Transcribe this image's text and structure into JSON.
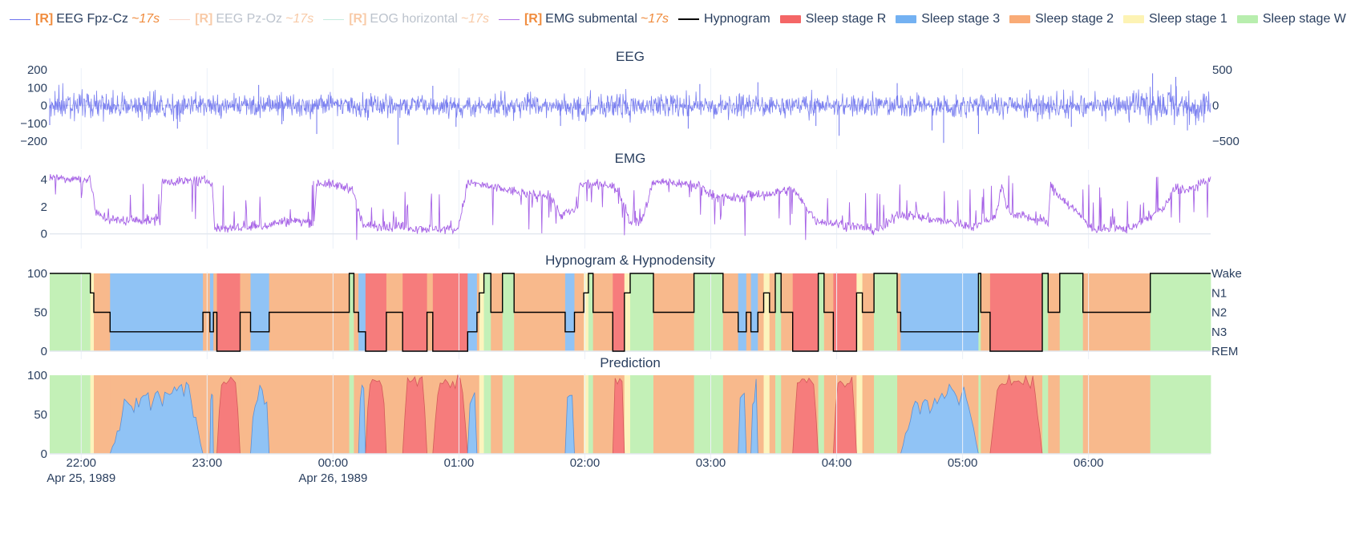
{
  "legend": [
    {
      "kind": "line",
      "prefix": "[R]",
      "label": "EEG Fpz-Cz",
      "suffix": "~17s",
      "color": "#6d72ee",
      "dim": false
    },
    {
      "kind": "line",
      "prefix": "[R]",
      "label": "EEG Pz-Oz",
      "suffix": "~17s",
      "color": "#f5a58a",
      "dim": true
    },
    {
      "kind": "line",
      "prefix": "[R]",
      "label": "EOG horizontal",
      "suffix": "~17s",
      "color": "#7fd6b8",
      "dim": true
    },
    {
      "kind": "line",
      "prefix": "[R]",
      "label": "EMG submental",
      "suffix": "~17s",
      "color": "#b06fe6",
      "dim": false
    },
    {
      "kind": "line",
      "prefix": "",
      "label": "Hypnogram",
      "suffix": "",
      "color": "#000000",
      "dim": false
    },
    {
      "kind": "box",
      "prefix": "",
      "label": "Sleep stage R",
      "suffix": "",
      "color": "#f46666",
      "dim": false
    },
    {
      "kind": "box",
      "prefix": "",
      "label": "Sleep stage 3",
      "suffix": "",
      "color": "#73b1f2",
      "dim": false
    },
    {
      "kind": "box",
      "prefix": "",
      "label": "Sleep stage 2",
      "suffix": "",
      "color": "#f9ab76",
      "dim": false
    },
    {
      "kind": "box",
      "prefix": "",
      "label": "Sleep stage 1",
      "suffix": "",
      "color": "#fdf3b4",
      "dim": false
    },
    {
      "kind": "box",
      "prefix": "",
      "label": "Sleep stage W",
      "suffix": "",
      "color": "#b8eeae",
      "dim": false
    }
  ],
  "colors": {
    "eeg": "#6d72ee",
    "emg": "#a662e6",
    "hypno": "#000000",
    "R": "#f67c7c",
    "N3": "#90c3f5",
    "N2": "#f8b98c",
    "N1": "#fcf4bd",
    "W": "#c3f0b7",
    "grid": "#ebf0f8"
  },
  "chart_data": [
    {
      "type": "line",
      "title": "EEG",
      "ylim": [
        -200,
        200
      ],
      "yticks": [
        -200,
        -100,
        0,
        100,
        200
      ],
      "ytick_labels": [
        "−200",
        "−100",
        "0",
        "100",
        "200"
      ],
      "y2lim": [
        -500,
        500
      ],
      "y2ticks": [
        -500,
        0,
        500
      ],
      "y2tick_labels": [
        "−500",
        "0",
        "500"
      ],
      "x_start": "21:45",
      "x_end": "06:58",
      "series": [
        {
          "name": "EEG Fpz-Cz",
          "amplitude": 55,
          "spikes": [
            [
              0.0,
              -110
            ],
            [
              0.11,
              -130
            ],
            [
              0.2,
              -105
            ],
            [
              0.23,
              -160
            ],
            [
              0.35,
              -120
            ],
            [
              0.44,
              -115
            ],
            [
              0.55,
              -130
            ],
            [
              0.66,
              -115
            ],
            [
              0.76,
              -140
            ],
            [
              0.8,
              -160
            ],
            [
              0.88,
              -120
            ],
            [
              0.98,
              -140
            ],
            [
              0.68,
              -170
            ],
            [
              0.3,
              -220
            ],
            [
              0.18,
              115
            ],
            [
              0.33,
              110
            ],
            [
              0.56,
              120
            ],
            [
              0.61,
              130
            ],
            [
              0.73,
              125
            ],
            [
              0.77,
              -210
            ],
            [
              0.95,
              180
            ],
            [
              0.97,
              160
            ]
          ],
          "bursts": [
            [
              0.0,
              0.05,
              1.3
            ],
            [
              0.45,
              0.5,
              1.15
            ],
            [
              0.93,
              1.0,
              1.4
            ]
          ]
        }
      ]
    },
    {
      "type": "line",
      "title": "EMG",
      "ylim": [
        -0.5,
        4.6
      ],
      "yticks": [
        0,
        2,
        4
      ],
      "ytick_labels": [
        "0",
        "2",
        "4"
      ],
      "segments": [
        [
          0.0,
          4.2
        ],
        [
          0.035,
          4.0
        ],
        [
          0.04,
          1.5
        ],
        [
          0.055,
          1.0
        ],
        [
          0.095,
          1.0
        ],
        [
          0.097,
          3.9
        ],
        [
          0.14,
          3.9
        ],
        [
          0.142,
          0.4
        ],
        [
          0.18,
          0.5
        ],
        [
          0.2,
          0.9
        ],
        [
          0.228,
          0.9
        ],
        [
          0.23,
          3.8
        ],
        [
          0.26,
          3.4
        ],
        [
          0.27,
          0.6
        ],
        [
          0.35,
          0.3
        ],
        [
          0.352,
          0.4
        ],
        [
          0.36,
          3.8
        ],
        [
          0.42,
          2.8
        ],
        [
          0.43,
          3.0
        ],
        [
          0.44,
          1.4
        ],
        [
          0.455,
          1.8
        ],
        [
          0.456,
          3.6
        ],
        [
          0.48,
          3.7
        ],
        [
          0.49,
          3.2
        ],
        [
          0.5,
          0.9
        ],
        [
          0.51,
          0.9
        ],
        [
          0.52,
          3.9
        ],
        [
          0.56,
          3.6
        ],
        [
          0.57,
          2.9
        ],
        [
          0.58,
          2.7
        ],
        [
          0.6,
          2.6
        ],
        [
          0.61,
          2.8
        ],
        [
          0.6,
          3.2
        ],
        [
          0.64,
          3.3
        ],
        [
          0.66,
          1.0
        ],
        [
          0.71,
          0.3
        ],
        [
          0.72,
          0.5
        ],
        [
          0.73,
          1.5
        ],
        [
          0.78,
          0.8
        ],
        [
          0.79,
          0.6
        ],
        [
          0.8,
          0.6
        ],
        [
          0.815,
          1.4
        ],
        [
          0.82,
          3.5
        ],
        [
          0.826,
          1.6
        ],
        [
          0.86,
          0.8
        ],
        [
          0.862,
          3.5
        ],
        [
          0.9,
          0.3
        ],
        [
          0.93,
          0.4
        ],
        [
          0.95,
          1.4
        ],
        [
          0.96,
          1.9
        ],
        [
          0.97,
          3.5
        ],
        [
          0.98,
          3.2
        ],
        [
          0.99,
          3.6
        ],
        [
          1.0,
          4.0
        ]
      ]
    },
    {
      "type": "area",
      "title": "Hypnogram & Hypnodensity",
      "ylim": [
        0,
        100
      ],
      "yticks": [
        0,
        50,
        100
      ],
      "ytick_labels": [
        "0",
        "50",
        "100"
      ],
      "stage_labels": [
        "Wake",
        "N1",
        "N2",
        "N3",
        "REM"
      ],
      "epochs": [
        [
          "W",
          0.0,
          0.035
        ],
        [
          "N1",
          0.035,
          0.038
        ],
        [
          "N2",
          0.038,
          0.052
        ],
        [
          "N3",
          0.052,
          0.132
        ],
        [
          "N2",
          0.132,
          0.138
        ],
        [
          "N3",
          0.138,
          0.141
        ],
        [
          "N2",
          0.141,
          0.144
        ],
        [
          "R",
          0.144,
          0.164
        ],
        [
          "N2",
          0.164,
          0.173
        ],
        [
          "N3",
          0.173,
          0.189
        ],
        [
          "N2",
          0.189,
          0.258
        ],
        [
          "W",
          0.258,
          0.262
        ],
        [
          "N2",
          0.262,
          0.266
        ],
        [
          "N3",
          0.266,
          0.272
        ],
        [
          "R",
          0.272,
          0.29
        ],
        [
          "N2",
          0.29,
          0.304
        ],
        [
          "R",
          0.304,
          0.325
        ],
        [
          "N2",
          0.325,
          0.33
        ],
        [
          "R",
          0.33,
          0.36
        ],
        [
          "N3",
          0.36,
          0.368
        ],
        [
          "N2",
          0.368,
          0.37
        ],
        [
          "N1",
          0.37,
          0.374
        ],
        [
          "W",
          0.374,
          0.38
        ],
        [
          "N2",
          0.38,
          0.39
        ],
        [
          "W",
          0.39,
          0.4
        ],
        [
          "N2",
          0.4,
          0.444
        ],
        [
          "N3",
          0.444,
          0.452
        ],
        [
          "N2",
          0.452,
          0.46
        ],
        [
          "N1",
          0.46,
          0.464
        ],
        [
          "W",
          0.464,
          0.468
        ],
        [
          "N2",
          0.468,
          0.485
        ],
        [
          "R",
          0.485,
          0.495
        ],
        [
          "N1",
          0.495,
          0.5
        ],
        [
          "W",
          0.5,
          0.52
        ],
        [
          "N2",
          0.52,
          0.555
        ],
        [
          "W",
          0.555,
          0.58
        ],
        [
          "N2",
          0.58,
          0.593
        ],
        [
          "N3",
          0.593,
          0.6
        ],
        [
          "N2",
          0.6,
          0.604
        ],
        [
          "N3",
          0.604,
          0.61
        ],
        [
          "N2",
          0.61,
          0.615
        ],
        [
          "N1",
          0.615,
          0.62
        ],
        [
          "N2",
          0.62,
          0.625
        ],
        [
          "W",
          0.625,
          0.63
        ],
        [
          "N2",
          0.63,
          0.64
        ],
        [
          "R",
          0.64,
          0.662
        ],
        [
          "W",
          0.662,
          0.667
        ],
        [
          "N2",
          0.667,
          0.675
        ],
        [
          "R",
          0.675,
          0.695
        ],
        [
          "N1",
          0.695,
          0.7
        ],
        [
          "N2",
          0.7,
          0.71
        ],
        [
          "W",
          0.71,
          0.73
        ],
        [
          "N2",
          0.73,
          0.733
        ],
        [
          "N3",
          0.733,
          0.8
        ],
        [
          "W",
          0.8,
          0.802
        ],
        [
          "N2",
          0.802,
          0.81
        ],
        [
          "R",
          0.81,
          0.855
        ],
        [
          "W",
          0.855,
          0.86
        ],
        [
          "N2",
          0.86,
          0.87
        ],
        [
          "W",
          0.87,
          0.89
        ],
        [
          "N2",
          0.89,
          0.92
        ],
        [
          "N2",
          0.92,
          0.948
        ],
        [
          "W",
          0.948,
          1.0
        ]
      ]
    },
    {
      "type": "area",
      "title": "Prediction",
      "ylim": [
        0,
        100
      ],
      "yticks": [
        0,
        50,
        100
      ],
      "ytick_labels": [
        "0",
        "50",
        "100"
      ],
      "x_tick_labels": [
        "22:00",
        "23:00",
        "00:00",
        "01:00",
        "02:00",
        "03:00",
        "04:00",
        "05:00",
        "06:00"
      ],
      "x_tick_positions_data": [
        0.25,
        1.25,
        2.25,
        3.25,
        4.25,
        5.25,
        6.25,
        7.25,
        8.25
      ],
      "date_labels": [
        {
          "at": 0.25,
          "text": "Apr 25, 1989"
        },
        {
          "at": 2.25,
          "text": "Apr 26, 1989"
        }
      ],
      "x_range_hours": [
        0,
        9.22
      ]
    }
  ]
}
